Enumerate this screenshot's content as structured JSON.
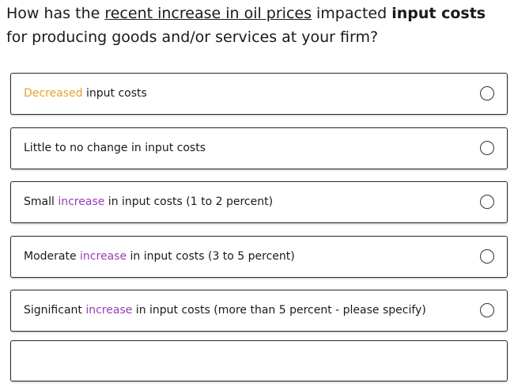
{
  "question": {
    "parts": [
      {
        "text": "How has the "
      },
      {
        "text": "recent increase in oil prices",
        "style": "underline"
      },
      {
        "text": " impacted "
      },
      {
        "text": "input costs",
        "style": "bold"
      },
      {
        "text": " for producing goods and/or services at your firm?"
      }
    ]
  },
  "options": [
    {
      "parts": [
        {
          "text": "Decreased",
          "style": "orange"
        },
        {
          "text": " input costs"
        }
      ]
    },
    {
      "parts": [
        {
          "text": "Little to no change in input costs"
        }
      ]
    },
    {
      "parts": [
        {
          "text": "Small "
        },
        {
          "text": "increase",
          "style": "purple"
        },
        {
          "text": " in input costs (1 to 2 percent)"
        }
      ]
    },
    {
      "parts": [
        {
          "text": "Moderate "
        },
        {
          "text": "increase",
          "style": "purple"
        },
        {
          "text": " in input costs (3 to 5 percent)"
        }
      ]
    },
    {
      "parts": [
        {
          "text": "Significant "
        },
        {
          "text": "increase",
          "style": "purple"
        },
        {
          "text": " in input costs (more than 5 percent - please specify)"
        }
      ]
    }
  ]
}
